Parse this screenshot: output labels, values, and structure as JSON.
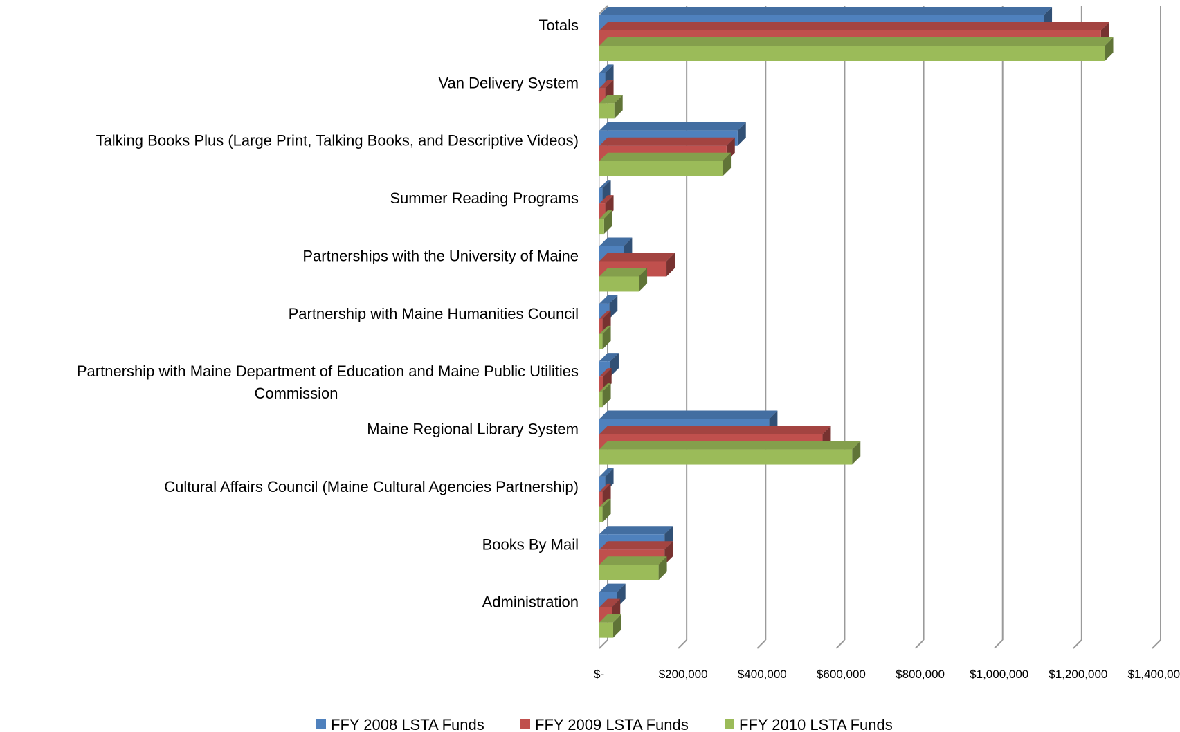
{
  "chart_data": {
    "type": "bar",
    "orientation": "horizontal",
    "style": "3d-clustered",
    "categories": [
      "Totals",
      "Van Delivery System",
      "Talking Books Plus (Large Print, Talking Books, and Descriptive Videos)",
      "Summer Reading Programs",
      "Partnerships with the University of Maine",
      "Partnership with Maine Humanities Council",
      "Partnership with Maine Department of Education and Maine Public Utilities Commission",
      "Maine Regional Library System",
      "Cultural Affairs Council (Maine Cultural Agencies Partnership)",
      "Books By Mail",
      "Administration"
    ],
    "category_lines": [
      [
        "Totals"
      ],
      [
        "Van Delivery System"
      ],
      [
        "Talking Books Plus (Large Print, Talking Books, and Descriptive Videos)"
      ],
      [
        "Summer Reading Programs"
      ],
      [
        "Partnerships with the University of Maine"
      ],
      [
        "Partnership with Maine Humanities Council"
      ],
      [
        "Partnership with Maine Department of Education and Maine Public Utilities",
        "Commission"
      ],
      [
        "Maine Regional Library System"
      ],
      [
        "Cultural Affairs Council (Maine Cultural Agencies Partnership)"
      ],
      [
        "Books By Mail"
      ],
      [
        "Administration"
      ]
    ],
    "series": [
      {
        "name": "FFY 2008 LSTA Funds",
        "color": "#4F81BD",
        "values": [
          1125000,
          15000,
          350000,
          8000,
          62000,
          25000,
          28000,
          430000,
          15000,
          165000,
          45000
        ]
      },
      {
        "name": "FFY 2009 LSTA Funds",
        "color": "#C0504D",
        "values": [
          1270000,
          15000,
          322000,
          15000,
          170000,
          8000,
          10000,
          565000,
          8000,
          165000,
          32000
        ]
      },
      {
        "name": "FFY 2010 LSTA Funds",
        "color": "#9BBB59",
        "values": [
          1280000,
          38000,
          312000,
          12000,
          100000,
          8000,
          8000,
          640000,
          8000,
          150000,
          35000
        ]
      }
    ],
    "x_ticks": [
      0,
      200000,
      400000,
      600000,
      800000,
      1000000,
      1200000,
      1400000
    ],
    "x_tick_labels": [
      "$-",
      "$200,000",
      "$400,000",
      "$600,000",
      "$800,000",
      "$1,000,000",
      "$1,200,000",
      "$1,400,000"
    ],
    "xlim": [
      0,
      1400000
    ],
    "grid": true,
    "legend_position": "bottom",
    "title": "",
    "xlabel": "",
    "ylabel": ""
  }
}
